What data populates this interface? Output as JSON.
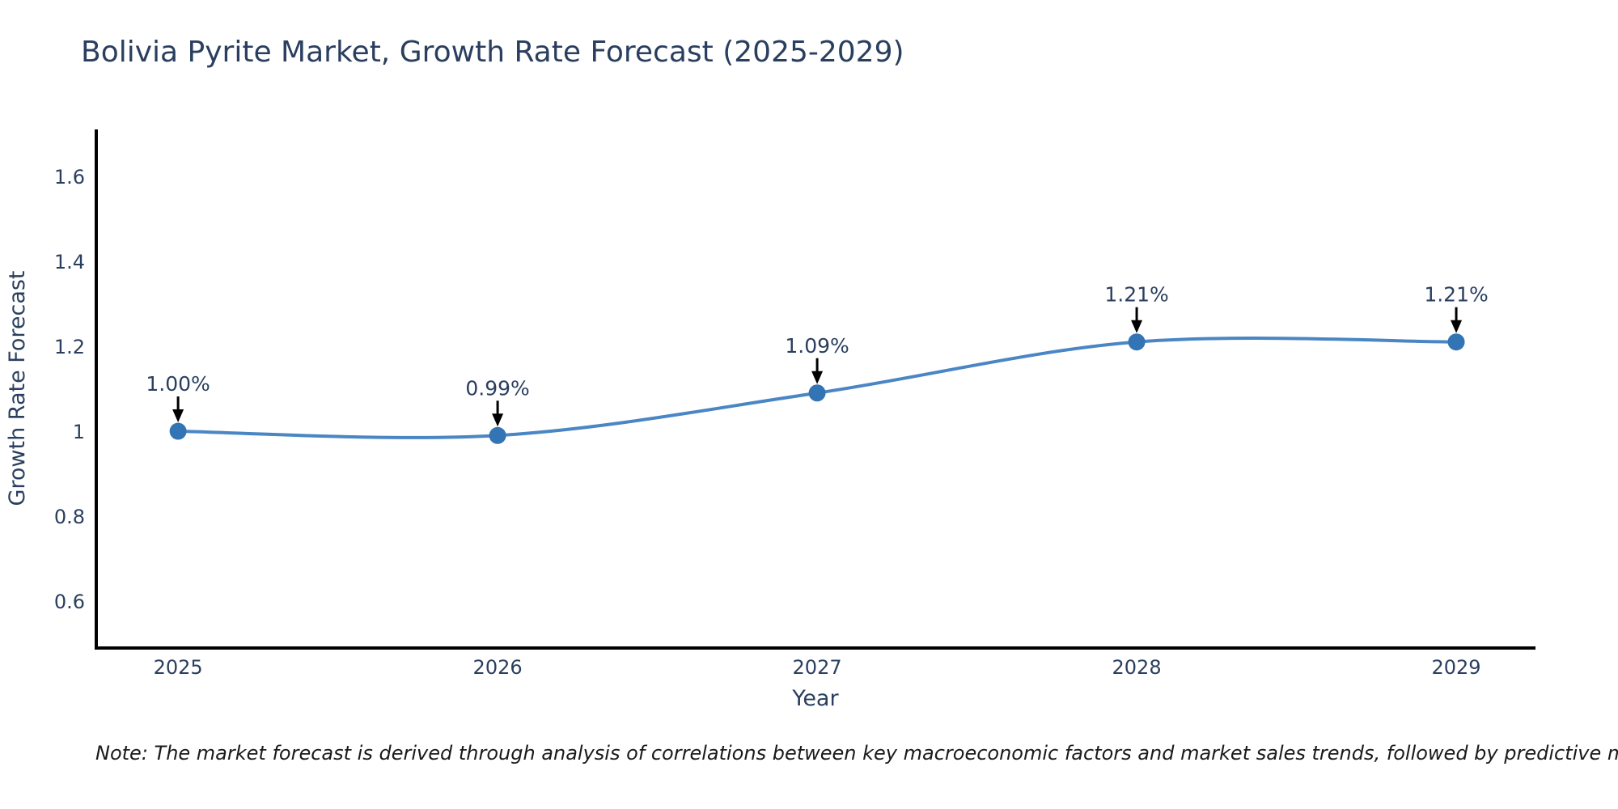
{
  "chart": {
    "title": "Bolivia Pyrite Market, Growth Rate Forecast (2025-2029)",
    "note": "Note: The market forecast is derived through analysis of correlations between key macroeconomic factors and market sales trends, followed by predictive modeling to project future sales"
  },
  "chart_data": {
    "type": "line",
    "title": "Bolivia Pyrite Market, Growth Rate Forecast (2025-2029)",
    "xlabel": "Year",
    "ylabel": "Growth Rate Forecast",
    "categories": [
      2025,
      2026,
      2027,
      2028,
      2029
    ],
    "values": [
      1.0,
      0.99,
      1.09,
      1.21,
      1.21
    ],
    "point_labels": [
      "1.00%",
      "0.99%",
      "1.09%",
      "1.21%",
      "1.21%"
    ],
    "yticks": [
      0.6,
      0.8,
      1,
      1.2,
      1.4,
      1.6
    ],
    "ytick_labels": [
      "0.6",
      "0.8",
      "1",
      "1.2",
      "1.4",
      "1.6"
    ],
    "xtick_labels": [
      "2025",
      "2026",
      "2027",
      "2028",
      "2029"
    ],
    "ylim": [
      0.49,
      1.71
    ],
    "xlim": [
      2024.744,
      2029.248
    ],
    "line_shape": "spline",
    "grid": false,
    "legend": "none",
    "colors": {
      "line": "#4a86c4",
      "marker": "#3374b4",
      "axis": "#000000",
      "text": "#2a3f5f",
      "annotation_text": "#2a3f5f",
      "annotation_arrow": "#000000"
    }
  }
}
